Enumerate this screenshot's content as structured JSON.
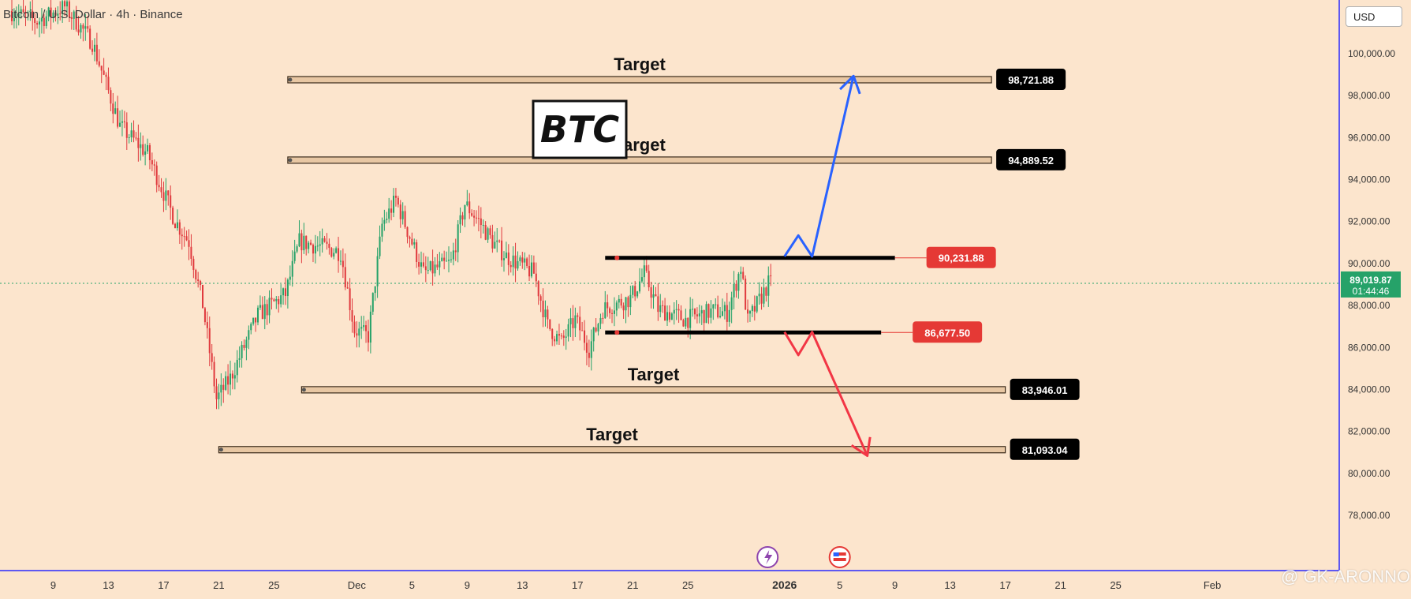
{
  "header": {
    "title": "Bitcoin / U.S. Dollar · 4h · Binance"
  },
  "currency_button": "USD",
  "watermark": "@ GK-ARONNO",
  "badge_symbol": "BTC",
  "chart_data": {
    "type": "candlestick",
    "symbol": "BTC",
    "title": "Bitcoin / U.S. Dollar · 4h · Binance",
    "timeframe": "4h",
    "exchange": "Binance",
    "ylim": [
      77000,
      102500
    ],
    "y_ticks": [
      {
        "value": 100000,
        "label": "100,000.00"
      },
      {
        "value": 98000,
        "label": "98,000.00"
      },
      {
        "value": 96000,
        "label": "96,000.00"
      },
      {
        "value": 94000,
        "label": "94,000.00"
      },
      {
        "value": 92000,
        "label": "92,000.00"
      },
      {
        "value": 90000,
        "label": "90,000.00"
      },
      {
        "value": 88000,
        "label": "88,000.00"
      },
      {
        "value": 86000,
        "label": "86,000.00"
      },
      {
        "value": 84000,
        "label": "84,000.00"
      },
      {
        "value": 82000,
        "label": "82,000.00"
      },
      {
        "value": 80000,
        "label": "80,000.00"
      },
      {
        "value": 78000,
        "label": "78,000.00"
      }
    ],
    "x_range": [
      "2025-11-06",
      "2026-02-09"
    ],
    "x_ticks": [
      {
        "date": "2025-11-09",
        "label": "9"
      },
      {
        "date": "2025-11-13",
        "label": "13"
      },
      {
        "date": "2025-11-17",
        "label": "17"
      },
      {
        "date": "2025-11-21",
        "label": "21"
      },
      {
        "date": "2025-11-25",
        "label": "25"
      },
      {
        "date": "2025-12-01",
        "label": "Dec"
      },
      {
        "date": "2025-12-05",
        "label": "5"
      },
      {
        "date": "2025-12-09",
        "label": "9"
      },
      {
        "date": "2025-12-13",
        "label": "13"
      },
      {
        "date": "2025-12-17",
        "label": "17"
      },
      {
        "date": "2025-12-21",
        "label": "21"
      },
      {
        "date": "2025-12-25",
        "label": "25"
      },
      {
        "date": "2026-01-01",
        "label": "2026"
      },
      {
        "date": "2026-01-05",
        "label": "5"
      },
      {
        "date": "2026-01-09",
        "label": "9"
      },
      {
        "date": "2026-01-13",
        "label": "13"
      },
      {
        "date": "2026-01-17",
        "label": "17"
      },
      {
        "date": "2026-01-21",
        "label": "21"
      },
      {
        "date": "2026-01-25",
        "label": "25"
      },
      {
        "date": "2026-02-01",
        "label": "Feb"
      }
    ],
    "price_path": [
      {
        "date": "2025-11-06",
        "price": 102000
      },
      {
        "date": "2025-11-08",
        "price": 101500
      },
      {
        "date": "2025-11-10",
        "price": 102200
      },
      {
        "date": "2025-11-12",
        "price": 100500
      },
      {
        "date": "2025-11-14",
        "price": 96500
      },
      {
        "date": "2025-11-16",
        "price": 95200
      },
      {
        "date": "2025-11-18",
        "price": 92000
      },
      {
        "date": "2025-11-19",
        "price": 91000
      },
      {
        "date": "2025-11-20",
        "price": 88000
      },
      {
        "date": "2025-11-21",
        "price": 83500
      },
      {
        "date": "2025-11-22",
        "price": 84500
      },
      {
        "date": "2025-11-24",
        "price": 87500
      },
      {
        "date": "2025-11-26",
        "price": 88500
      },
      {
        "date": "2025-11-27",
        "price": 91000
      },
      {
        "date": "2025-11-29",
        "price": 90700
      },
      {
        "date": "2025-11-30",
        "price": 90500
      },
      {
        "date": "2025-12-01",
        "price": 86800
      },
      {
        "date": "2025-12-02",
        "price": 86500
      },
      {
        "date": "2025-12-03",
        "price": 91800
      },
      {
        "date": "2025-12-04",
        "price": 93000
      },
      {
        "date": "2025-12-06",
        "price": 89500
      },
      {
        "date": "2025-12-08",
        "price": 90000
      },
      {
        "date": "2025-12-09",
        "price": 92800
      },
      {
        "date": "2025-12-10",
        "price": 92000
      },
      {
        "date": "2025-12-11",
        "price": 91000
      },
      {
        "date": "2025-12-12",
        "price": 90300
      },
      {
        "date": "2025-12-14",
        "price": 89500
      },
      {
        "date": "2025-12-15",
        "price": 87000
      },
      {
        "date": "2025-12-16",
        "price": 86200
      },
      {
        "date": "2025-12-17",
        "price": 87300
      },
      {
        "date": "2025-12-18",
        "price": 85900
      },
      {
        "date": "2025-12-19",
        "price": 87800
      },
      {
        "date": "2025-12-21",
        "price": 88300
      },
      {
        "date": "2025-12-22",
        "price": 89500
      },
      {
        "date": "2025-12-23",
        "price": 87800
      },
      {
        "date": "2025-12-25",
        "price": 87300
      },
      {
        "date": "2025-12-27",
        "price": 87700
      },
      {
        "date": "2025-12-28",
        "price": 87600
      },
      {
        "date": "2025-12-29",
        "price": 89800
      },
      {
        "date": "2025-12-29.5",
        "price": 87200
      },
      {
        "date": "2025-12-31",
        "price": 89000
      }
    ],
    "current_price": {
      "value": 89019.87,
      "label": "89,019.87",
      "countdown": "01:44:46"
    },
    "levels": [
      {
        "name": "Target",
        "value": 98721.88,
        "label": "98,721.88",
        "style": "target",
        "start": "2025-11-26",
        "end": "2026-01-16"
      },
      {
        "name": "Target",
        "value": 94889.52,
        "label": "94,889.52",
        "style": "target",
        "start": "2025-11-26",
        "end": "2026-01-16"
      },
      {
        "name": "",
        "value": 90231.88,
        "label": "90,231.88",
        "style": "resistance",
        "start": "2025-12-19",
        "end": "2026-01-09"
      },
      {
        "name": "",
        "value": 86677.5,
        "label": "86,677.50",
        "style": "support",
        "start": "2025-12-19",
        "end": "2026-01-08"
      },
      {
        "name": "Target",
        "value": 83946.01,
        "label": "83,946.01",
        "style": "target",
        "start": "2025-11-27",
        "end": "2026-01-17"
      },
      {
        "name": "Target",
        "value": 81093.04,
        "label": "81,093.04",
        "style": "target",
        "start": "2025-11-21",
        "end": "2026-01-17"
      }
    ],
    "projections": [
      {
        "direction": "up",
        "color": "#2962ff",
        "points": [
          {
            "date": "2026-01-01",
            "price": 90300
          },
          {
            "date": "2026-01-02",
            "price": 91300
          },
          {
            "date": "2026-01-03",
            "price": 90300
          },
          {
            "date": "2026-01-06",
            "price": 98900
          }
        ]
      },
      {
        "direction": "down",
        "color": "#f23645",
        "points": [
          {
            "date": "2026-01-01",
            "price": 86700
          },
          {
            "date": "2026-01-02",
            "price": 85600
          },
          {
            "date": "2026-01-03",
            "price": 86700
          },
          {
            "date": "2026-01-07",
            "price": 80800
          }
        ]
      }
    ],
    "colors": {
      "background": "#fce5cd",
      "up": "#26a269",
      "down": "#e03a3e",
      "target_fill": "#e8c7a3",
      "axis_line": "#2a2aff"
    }
  }
}
